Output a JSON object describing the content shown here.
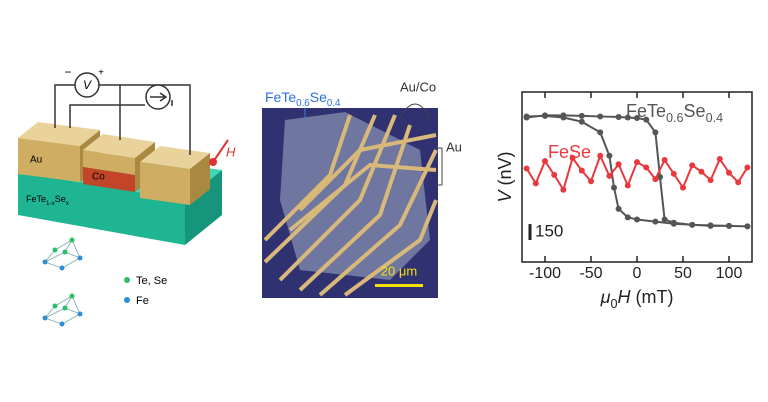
{
  "schematic": {
    "au": "Au",
    "co": "Co",
    "substrate": [
      "FeTe",
      "1-x",
      "Se",
      "x"
    ],
    "field": "H",
    "voltmeter": "V",
    "minus": "−",
    "plus": "+",
    "legend_te_se": "Te, Se",
    "legend_fe": "Fe"
  },
  "micrograph": {
    "material": [
      "FeTe",
      "0.6",
      "Se",
      "0.4"
    ],
    "contact_auco": "Au/Co",
    "contact_au": "Au",
    "scale": "20 μm"
  },
  "chart_data": {
    "type": "line",
    "x_label": [
      "μ",
      "0",
      "H",
      " (mT)"
    ],
    "y_label": [
      "V",
      " (nV)"
    ],
    "xlim": [
      -125,
      125
    ],
    "xticks": [
      -100,
      -50,
      0,
      50,
      100
    ],
    "ylim": [
      -800,
      800
    ],
    "scale_bar": 150,
    "series": [
      {
        "name": [
          "FeTe",
          "0.6",
          "Se",
          "0.4"
        ],
        "color": "#555555",
        "x": [
          -120,
          -100,
          -80,
          -60,
          -40,
          -20,
          -10,
          0,
          10,
          20,
          25,
          30,
          40,
          60,
          80,
          100,
          120,
          120,
          100,
          80,
          60,
          40,
          20,
          0,
          -10,
          -20,
          -25,
          -30,
          -40,
          -60,
          -80,
          -100,
          -120
        ],
        "values": [
          560,
          580,
          580,
          575,
          570,
          565,
          560,
          555,
          540,
          420,
          0,
          -400,
          -430,
          -450,
          -460,
          -460,
          -465,
          -465,
          -460,
          -455,
          -450,
          -440,
          -420,
          -400,
          -380,
          -300,
          -100,
          200,
          420,
          520,
          560,
          575,
          570
        ]
      },
      {
        "name": "FeSe",
        "color": "#e8393f",
        "x": [
          -120,
          -110,
          -100,
          -90,
          -80,
          -70,
          -60,
          -50,
          -40,
          -30,
          -20,
          -10,
          0,
          10,
          20,
          30,
          40,
          50,
          60,
          70,
          80,
          90,
          100,
          110,
          120
        ],
        "values": [
          80,
          -60,
          150,
          20,
          -120,
          180,
          60,
          -40,
          200,
          10,
          120,
          -80,
          140,
          90,
          -20,
          160,
          30,
          -100,
          110,
          50,
          -30,
          170,
          40,
          -50,
          90
        ]
      }
    ]
  }
}
